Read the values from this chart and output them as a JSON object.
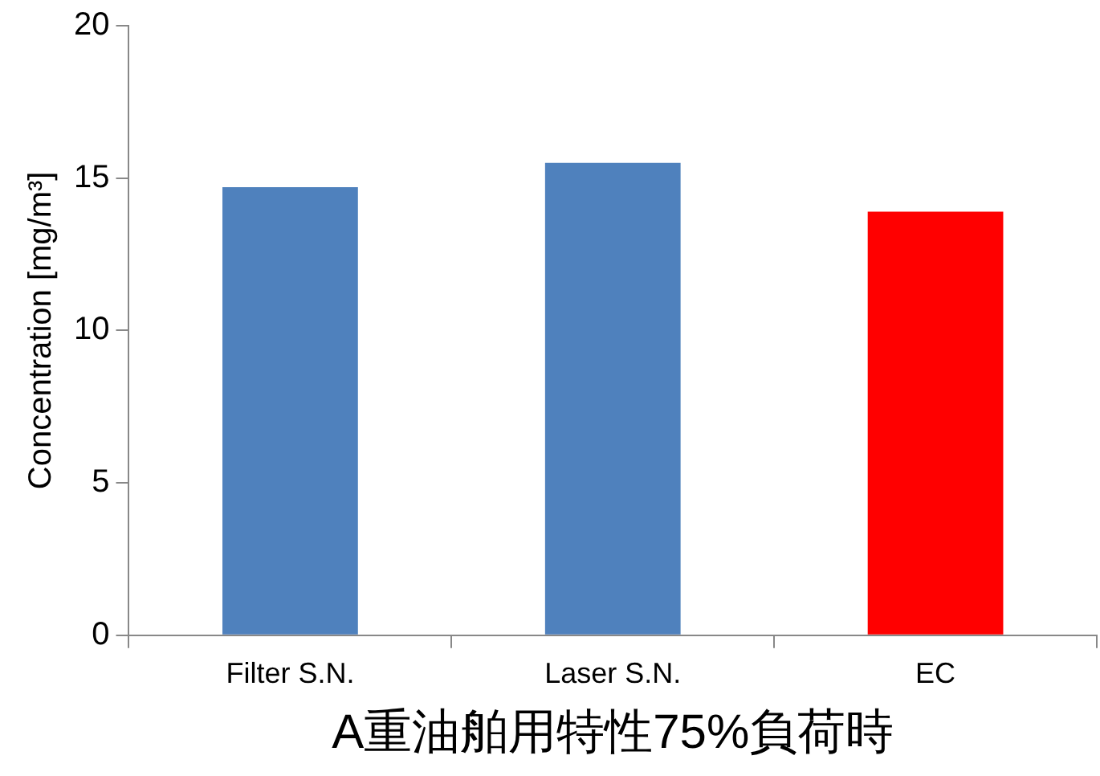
{
  "chart_data": {
    "type": "bar",
    "categories": [
      "Filter S.N.",
      "Laser S.N.",
      "EC"
    ],
    "values": [
      14.7,
      15.5,
      13.9
    ],
    "colors": [
      "#4f81bd",
      "#4f81bd",
      "#ff0000"
    ],
    "ylim": [
      0,
      20
    ],
    "yticks": [
      0,
      5,
      10,
      15,
      20
    ],
    "ylabel": "Concentration [mg/m³]",
    "xlabel": "A重油舶用特性75%負荷時",
    "grid": false,
    "legend": false
  }
}
